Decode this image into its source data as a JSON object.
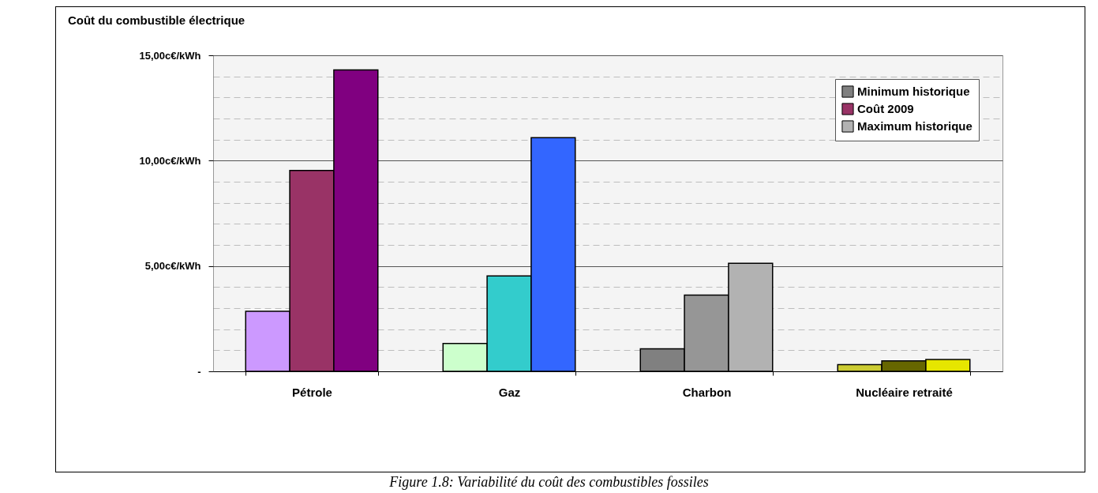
{
  "chart_data": {
    "type": "bar",
    "title": "Coût du combustible électrique",
    "categories": [
      "Pétrole",
      "Gaz",
      "Charbon",
      "Nucléaire retraité"
    ],
    "series": [
      {
        "name": "Minimum historique",
        "color": "#808080",
        "colors": [
          "#cc99ff",
          "#ccffcc",
          "#808080",
          "#cccc33"
        ],
        "values": [
          2.85,
          1.32,
          1.07,
          0.32
        ]
      },
      {
        "name": "Coût 2009",
        "color": "#993366",
        "colors": [
          "#993366",
          "#33cccc",
          "#969696",
          "#666600"
        ],
        "values": [
          9.53,
          4.53,
          3.62,
          0.5
        ]
      },
      {
        "name": "Maximum historique",
        "color": "#b2b2b2",
        "colors": [
          "#800080",
          "#3366ff",
          "#b2b2b2",
          "#e6e600"
        ],
        "values": [
          14.31,
          11.09,
          5.13,
          0.56
        ]
      }
    ],
    "ylim": [
      0,
      15
    ],
    "yticks": [
      {
        "value": 0,
        "label": "-"
      },
      {
        "value": 1,
        "label": null
      },
      {
        "value": 2,
        "label": null
      },
      {
        "value": 3,
        "label": null
      },
      {
        "value": 4,
        "label": null
      },
      {
        "value": 5,
        "label": "5,00c€/kWh"
      },
      {
        "value": 6,
        "label": null
      },
      {
        "value": 7,
        "label": null
      },
      {
        "value": 8,
        "label": null
      },
      {
        "value": 9,
        "label": null
      },
      {
        "value": 10,
        "label": "10,00c€/kWh"
      },
      {
        "value": 11,
        "label": null
      },
      {
        "value": 12,
        "label": null
      },
      {
        "value": 13,
        "label": null
      },
      {
        "value": 14,
        "label": null
      },
      {
        "value": 15,
        "label": "15,00c€/kWh"
      }
    ],
    "grid": "y",
    "legend": "top right",
    "annotations": [
      "Figure 1.8: Variabilité du coût des combustibles fossiles"
    ]
  }
}
